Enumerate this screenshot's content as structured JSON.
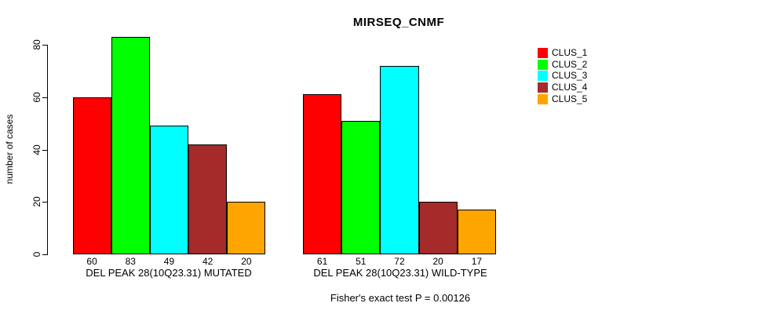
{
  "title": "MIRSEQ_CNMF",
  "caption": "Fisher's exact test P = 0.00126",
  "legend": {
    "items": [
      {
        "label": "CLUS_1",
        "color": "#FF0000"
      },
      {
        "label": "CLUS_2",
        "color": "#00FF00"
      },
      {
        "label": "CLUS_3",
        "color": "#00FFFF"
      },
      {
        "label": "CLUS_4",
        "color": "#A52A2A"
      },
      {
        "label": "CLUS_5",
        "color": "#FFA500"
      }
    ]
  },
  "chart_data": {
    "type": "bar",
    "title": "MIRSEQ_CNMF",
    "xlabel": "",
    "ylabel": "number of cases",
    "ylim": [
      0,
      80
    ],
    "yticks": [
      0,
      20,
      40,
      60,
      80
    ],
    "grid": false,
    "legend_position": "right",
    "series_labels": [
      "CLUS_1",
      "CLUS_2",
      "CLUS_3",
      "CLUS_4",
      "CLUS_5"
    ],
    "colors": [
      "#FF0000",
      "#00FF00",
      "#00FFFF",
      "#A52A2A",
      "#FFA500"
    ],
    "groups": [
      {
        "label": "DEL PEAK 28(10Q23.31) MUTATED",
        "values": [
          60,
          83,
          49,
          42,
          20
        ]
      },
      {
        "label": "DEL PEAK 28(10Q23.31) WILD-TYPE",
        "values": [
          61,
          51,
          72,
          20,
          17
        ]
      }
    ],
    "annotation": "Fisher's exact test P = 0.00126"
  }
}
